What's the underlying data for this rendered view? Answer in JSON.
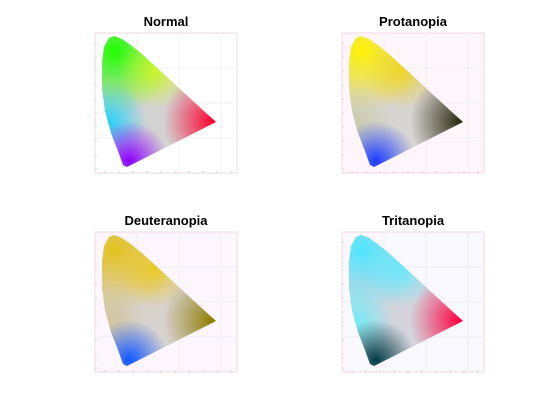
{
  "chart_data": [
    {
      "type": "chromaticity-diagram",
      "title": "Normal",
      "panel_tint": "#ffffff",
      "vertices": {
        "green": "#22ff00",
        "cyan": "#00d2ff",
        "red": "#ff0030",
        "violet": "#8c00ff",
        "yellow": "#d6ff00",
        "center": "#d2d2d2"
      }
    },
    {
      "type": "chromaticity-diagram",
      "title": "Protanopia",
      "panel_tint": "#fff6fb",
      "vertices": {
        "green": "#fff200",
        "cyan": "#c8c8a6",
        "red": "#2c2a10",
        "violet": "#1a3cff",
        "yellow": "#f2d200",
        "center": "#d8d4d2"
      }
    },
    {
      "type": "chromaticity-diagram",
      "title": "Deuteranopia",
      "panel_tint": "#fdf6ff",
      "vertices": {
        "green": "#e4c21c",
        "cyan": "#cfc08f",
        "red": "#8e7d00",
        "violet": "#0e56ff",
        "yellow": "#f0c800",
        "center": "#d8d2cf"
      }
    },
    {
      "type": "chromaticity-diagram",
      "title": "Tritanopia",
      "panel_tint": "#f9f9ff",
      "vertices": {
        "green": "#4ee6ff",
        "cyan": "#5cf0ff",
        "red": "#ff0040",
        "violet": "#003c46",
        "yellow": "#58ecff",
        "center": "#d4d4dc"
      }
    }
  ]
}
